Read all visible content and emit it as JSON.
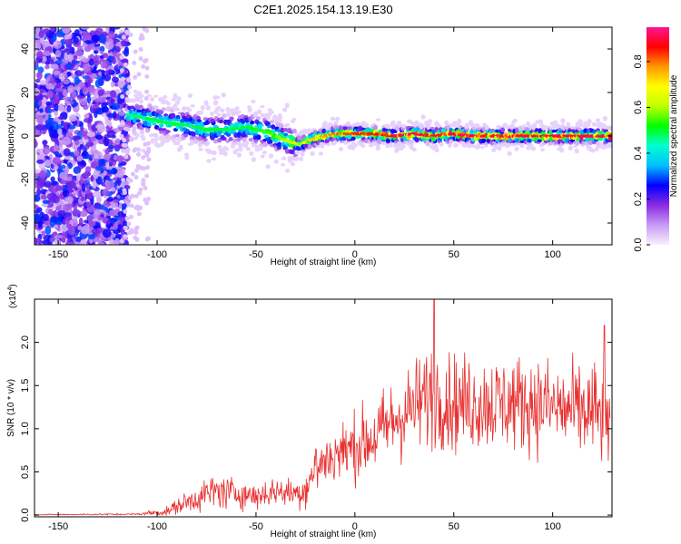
{
  "title": "C2E1.2025.154.13.19.E30",
  "chart_data": [
    {
      "type": "heatmap",
      "xlabel": "Height of straight line (km)",
      "ylabel": "Frequency (Hz)",
      "xlim": [
        -162,
        130
      ],
      "ylim": [
        -50,
        50
      ],
      "x_ticks": [
        -150,
        -100,
        -50,
        0,
        50,
        100
      ],
      "y_ticks": [
        -40,
        -20,
        0,
        20,
        40
      ],
      "grid": false,
      "colorbar": {
        "label": "Normalized spectral amplitude",
        "range": [
          0,
          0.95
        ],
        "ticks": [
          0.0,
          0.2,
          0.4,
          0.6,
          0.8
        ],
        "tick_labels": [
          "0.0",
          "0.2",
          "0.4",
          "0.6",
          "0.8"
        ],
        "colormap": [
          "#f8f0ff",
          "#c89bf5",
          "#8a2be2",
          "#0000ff",
          "#00bfff",
          "#00ffd0",
          "#00ff00",
          "#c0ff00",
          "#ffff00",
          "#ff9900",
          "#ff0000",
          "#ff1493"
        ]
      },
      "noise_region": {
        "x": [
          -162,
          -115
        ],
        "y": [
          -50,
          50
        ],
        "amplitude": [
          0.05,
          0.3
        ]
      },
      "ridge": [
        {
          "x": -115,
          "y": 10,
          "amp": 0.45
        },
        {
          "x": -105,
          "y": 8,
          "amp": 0.5
        },
        {
          "x": -95,
          "y": 6,
          "amp": 0.5
        },
        {
          "x": -85,
          "y": 5,
          "amp": 0.5
        },
        {
          "x": -75,
          "y": 3,
          "amp": 0.5
        },
        {
          "x": -65,
          "y": 3,
          "amp": 0.5
        },
        {
          "x": -55,
          "y": 4,
          "amp": 0.5
        },
        {
          "x": -45,
          "y": 2,
          "amp": 0.55
        },
        {
          "x": -35,
          "y": -2,
          "amp": 0.6
        },
        {
          "x": -28,
          "y": -4,
          "amp": 0.65
        },
        {
          "x": -20,
          "y": -1,
          "amp": 0.75
        },
        {
          "x": -10,
          "y": 1,
          "amp": 0.8
        },
        {
          "x": 0,
          "y": 1,
          "amp": 0.85
        },
        {
          "x": 10,
          "y": 1,
          "amp": 0.85
        },
        {
          "x": 20,
          "y": 0,
          "amp": 0.9
        },
        {
          "x": 30,
          "y": 1,
          "amp": 0.9
        },
        {
          "x": 40,
          "y": 0,
          "amp": 0.9
        },
        {
          "x": 50,
          "y": 1,
          "amp": 0.9
        },
        {
          "x": 60,
          "y": 0,
          "amp": 0.9
        },
        {
          "x": 70,
          "y": 0,
          "amp": 0.9
        },
        {
          "x": 80,
          "y": 0,
          "amp": 0.9
        },
        {
          "x": 90,
          "y": 0,
          "amp": 0.9
        },
        {
          "x": 100,
          "y": 0,
          "amp": 0.9
        },
        {
          "x": 110,
          "y": 0,
          "amp": 0.9
        },
        {
          "x": 120,
          "y": 0,
          "amp": 0.9
        },
        {
          "x": 130,
          "y": 0,
          "amp": 0.9
        }
      ]
    },
    {
      "type": "line",
      "xlabel": "Height of straight line (km)",
      "ylabel": "SNR (10 * v/v)",
      "y_multiplier_label": "(x10",
      "y_multiplier_exponent": "4",
      "y_multiplier_close": ")",
      "xlim": [
        -162,
        130
      ],
      "ylim": [
        -0.02,
        2.5
      ],
      "x_ticks": [
        -150,
        -100,
        -50,
        0,
        50,
        100
      ],
      "y_ticks": [
        0.0,
        0.5,
        1.0,
        1.5,
        2.0
      ],
      "y_tick_labels": [
        "0.0",
        "0.5",
        "1.0",
        "1.5",
        "2.0"
      ],
      "grid": false,
      "series": [
        {
          "color": "#e83030",
          "envelope_x": [
            -162,
            -110,
            -105,
            -95,
            -90,
            -80,
            -70,
            -60,
            -50,
            -40,
            -30,
            -25,
            -20,
            -10,
            0,
            10,
            20,
            30,
            40,
            50,
            60,
            70,
            80,
            90,
            100,
            110,
            120,
            128
          ],
          "envelope_mean": [
            0.005,
            0.01,
            0.02,
            0.04,
            0.1,
            0.2,
            0.28,
            0.25,
            0.22,
            0.28,
            0.25,
            0.3,
            0.55,
            0.7,
            0.8,
            0.9,
            1.1,
            1.25,
            1.4,
            1.3,
            1.3,
            1.3,
            1.3,
            1.3,
            1.25,
            1.2,
            1.2,
            1.1
          ],
          "envelope_spread": [
            0.005,
            0.01,
            0.03,
            0.05,
            0.08,
            0.15,
            0.2,
            0.15,
            0.15,
            0.15,
            0.15,
            0.2,
            0.3,
            0.3,
            0.35,
            0.4,
            0.45,
            0.5,
            0.55,
            0.5,
            0.5,
            0.5,
            0.5,
            0.5,
            0.5,
            0.5,
            0.55,
            0.5
          ],
          "peak_points": [
            {
              "x": 40,
              "y": 2.5
            },
            {
              "x": 126,
              "y": 2.2
            }
          ]
        }
      ]
    }
  ]
}
